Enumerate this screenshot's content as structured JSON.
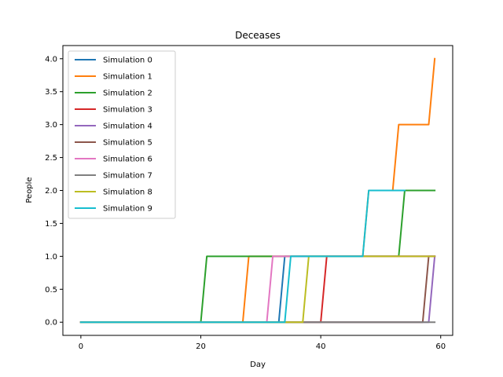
{
  "chart_data": {
    "type": "line",
    "title": "Deceases",
    "xlabel": "Day",
    "ylabel": "People",
    "xlim": [
      -3,
      62
    ],
    "ylim": [
      -0.2,
      4.2
    ],
    "x_ticks": [
      0,
      20,
      40,
      60
    ],
    "y_ticks": [
      0.0,
      0.5,
      1.0,
      1.5,
      2.0,
      2.5,
      3.0,
      3.5,
      4.0
    ],
    "x_tick_labels": [
      "0",
      "20",
      "40",
      "60"
    ],
    "y_tick_labels": [
      "0.0",
      "0.5",
      "1.0",
      "1.5",
      "2.0",
      "2.5",
      "3.0",
      "3.5",
      "4.0"
    ],
    "grid": false,
    "legend_position": "upper-left",
    "series": [
      {
        "name": "Simulation 0",
        "color": "#1f77b4",
        "points": [
          [
            0,
            0
          ],
          [
            33,
            0
          ],
          [
            34,
            1
          ],
          [
            59,
            1
          ]
        ]
      },
      {
        "name": "Simulation 1",
        "color": "#ff7f0e",
        "points": [
          [
            0,
            0
          ],
          [
            27,
            0
          ],
          [
            28,
            1
          ],
          [
            47,
            1
          ],
          [
            48,
            2
          ],
          [
            52,
            2
          ],
          [
            53,
            3
          ],
          [
            58,
            3
          ],
          [
            59,
            4
          ]
        ]
      },
      {
        "name": "Simulation 2",
        "color": "#2ca02c",
        "points": [
          [
            0,
            0
          ],
          [
            20,
            0
          ],
          [
            21,
            1
          ],
          [
            53,
            1
          ],
          [
            54,
            2
          ],
          [
            59,
            2
          ]
        ]
      },
      {
        "name": "Simulation 3",
        "color": "#d62728",
        "points": [
          [
            0,
            0
          ],
          [
            40,
            0
          ],
          [
            41,
            1
          ],
          [
            59,
            1
          ]
        ]
      },
      {
        "name": "Simulation 4",
        "color": "#9467bd",
        "points": [
          [
            0,
            0
          ],
          [
            58,
            0
          ],
          [
            59,
            1
          ]
        ]
      },
      {
        "name": "Simulation 5",
        "color": "#8c564b",
        "points": [
          [
            0,
            0
          ],
          [
            57,
            0
          ],
          [
            58,
            1
          ],
          [
            59,
            1
          ]
        ]
      },
      {
        "name": "Simulation 6",
        "color": "#e377c2",
        "points": [
          [
            0,
            0
          ],
          [
            31,
            0
          ],
          [
            32,
            1
          ],
          [
            59,
            1
          ]
        ]
      },
      {
        "name": "Simulation 7",
        "color": "#7f7f7f",
        "points": [
          [
            0,
            0
          ],
          [
            59,
            0
          ]
        ]
      },
      {
        "name": "Simulation 8",
        "color": "#bcbd22",
        "points": [
          [
            0,
            0
          ],
          [
            37,
            0
          ],
          [
            38,
            1
          ],
          [
            59,
            1
          ]
        ]
      },
      {
        "name": "Simulation 9",
        "color": "#17becf",
        "points": [
          [
            0,
            0
          ],
          [
            34,
            0
          ],
          [
            35,
            1
          ],
          [
            47,
            1
          ],
          [
            48,
            2
          ],
          [
            54,
            2
          ]
        ]
      }
    ]
  }
}
